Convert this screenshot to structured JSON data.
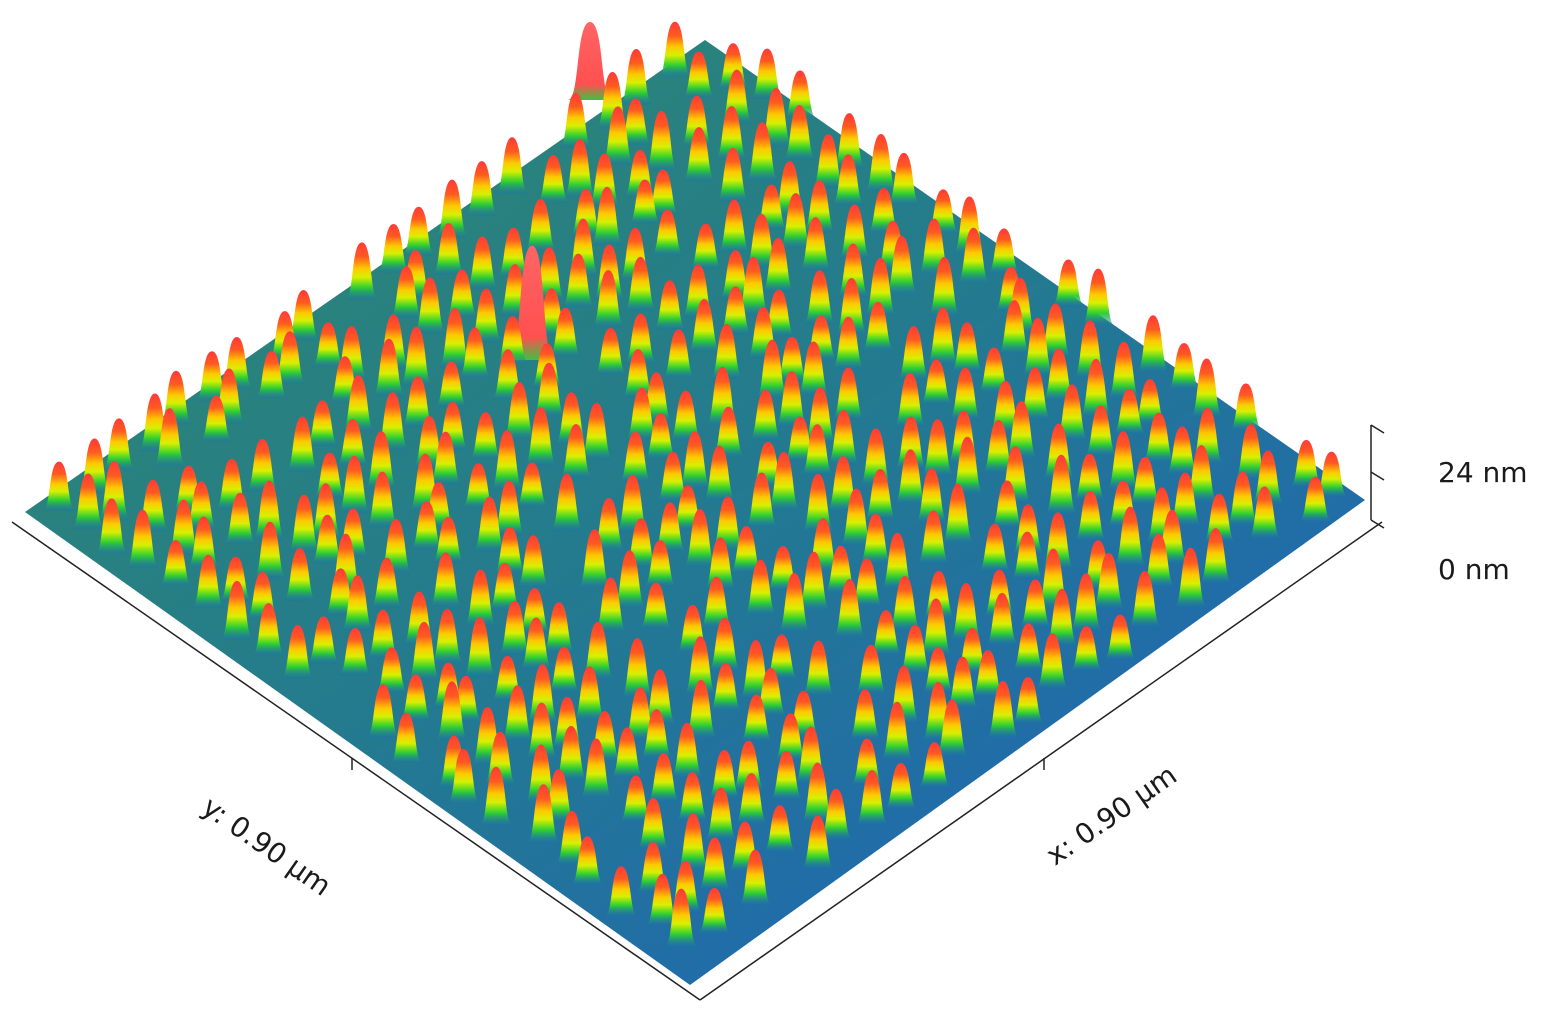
{
  "figure": {
    "type": "3d-surface-topography",
    "x_axis_label": "x: 0.90 µm",
    "y_axis_label": "y: 0.90 µm",
    "z_axis": {
      "max_label": "24 nm",
      "min_label": "0 nm"
    },
    "colormap": [
      "#1a3fd0",
      "#1f8fa0",
      "#2fbf3f",
      "#8ae800",
      "#ffe600",
      "#ff8a00",
      "#ff3030"
    ],
    "highlight_color": "#ff6060"
  }
}
